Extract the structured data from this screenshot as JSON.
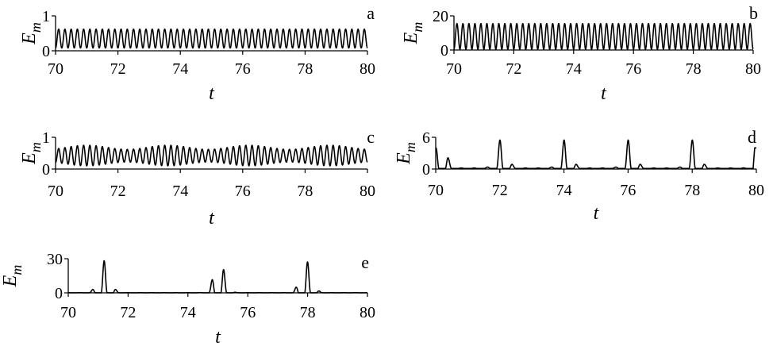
{
  "chart_data": [
    {
      "id": "a",
      "type": "line",
      "label": "a",
      "xlabel": "t",
      "ylabel_main": "E",
      "ylabel_sub": "m",
      "xlim": [
        70,
        80
      ],
      "ylim": [
        0,
        1
      ],
      "xticks": [
        "70",
        "72",
        "74",
        "76",
        "78",
        "80"
      ],
      "yticks": [
        "0",
        "1"
      ],
      "signal": {
        "kind": "periodic",
        "period": 0.2,
        "min": 0.08,
        "max": 0.62,
        "start_x": 70,
        "start_y": 0.05
      }
    },
    {
      "id": "b",
      "type": "line",
      "label": "b",
      "xlabel": "t",
      "ylabel_main": "E",
      "ylabel_sub": "m",
      "xlim": [
        70,
        80
      ],
      "ylim": [
        0,
        20
      ],
      "xticks": [
        "70",
        "72",
        "74",
        "76",
        "78",
        "80"
      ],
      "yticks": [
        "0",
        "20"
      ],
      "signal": {
        "kind": "periodic",
        "period": 0.2,
        "min": 0.5,
        "max": 15.5,
        "start_x": 70,
        "start_y": 0.5
      }
    },
    {
      "id": "c",
      "type": "line",
      "label": "c",
      "xlabel": "t",
      "ylabel_main": "E",
      "ylabel_sub": "m",
      "xlim": [
        70,
        80
      ],
      "ylim": [
        0,
        1
      ],
      "xticks": [
        "70",
        "72",
        "74",
        "76",
        "78",
        "80"
      ],
      "yticks": [
        "0",
        "1"
      ],
      "signal": {
        "kind": "modulated",
        "period": 0.2,
        "min": 0.1,
        "max": 0.75,
        "min_low": 0.22,
        "max_low": 0.62,
        "mod_period": 2.6,
        "start_x": 70,
        "start_y": 0.3
      }
    },
    {
      "id": "d",
      "type": "line",
      "label": "d",
      "xlabel": "t",
      "ylabel_main": "E",
      "ylabel_sub": "m",
      "xlim": [
        70,
        80
      ],
      "ylim": [
        0,
        6
      ],
      "xticks": [
        "70",
        "72",
        "74",
        "76",
        "78",
        "80"
      ],
      "yticks": [
        "0",
        "6"
      ],
      "signal": {
        "kind": "bursts",
        "period": 0.2,
        "baseline": 0.2,
        "burst_centers": [
          70.15,
          72.05,
          74.05,
          76.05,
          78.05,
          80.2
        ],
        "burst_peak": 5.5,
        "burst_width": 0.35,
        "last_x": 79.95,
        "last_y": 4.0
      }
    },
    {
      "id": "e",
      "type": "line",
      "label": "e",
      "xlabel": "t",
      "ylabel_main": "E",
      "ylabel_sub": "m",
      "xlim": [
        70,
        80
      ],
      "ylim": [
        0,
        30
      ],
      "xticks": [
        "70",
        "72",
        "74",
        "76",
        "78",
        "80"
      ],
      "yticks": [
        "0",
        "30"
      ],
      "signal": {
        "kind": "bursts",
        "period": 0.2,
        "baseline": 0.15,
        "burst_centers": [
          71.2,
          75.05,
          77.95
        ],
        "burst_peak": 28,
        "burst_width": 0.38,
        "last_x": 80,
        "last_y": 0.1
      }
    }
  ]
}
